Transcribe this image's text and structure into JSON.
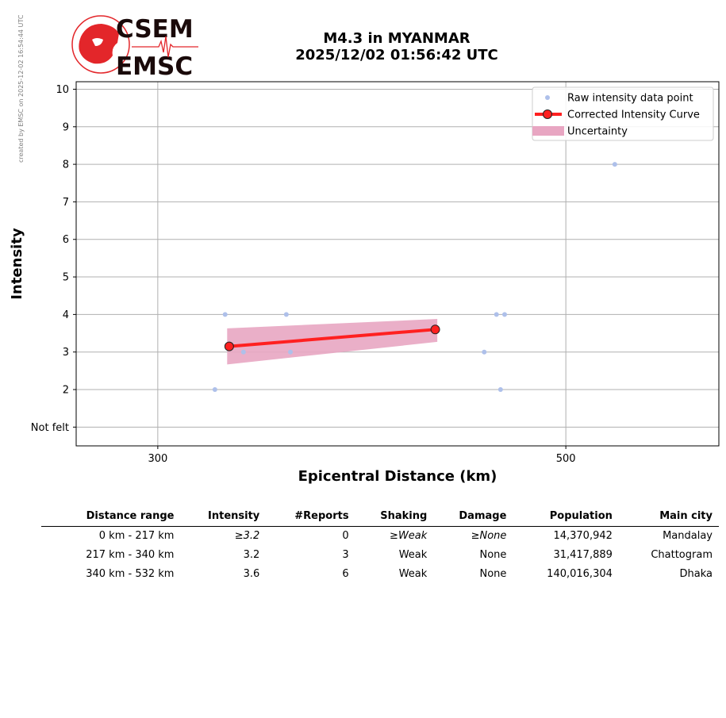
{
  "credit": "created by EMSC on 2025-12-02 16:54:44 UTC",
  "logo": {
    "top_text": "CSEM",
    "bottom_text": "EMSC",
    "accent": "#e3262a"
  },
  "title": {
    "line1": "M4.3 in MYANMAR",
    "line2": "2025/12/02 01:56:42 UTC"
  },
  "chart_data": {
    "type": "scatter",
    "xlabel": "Epicentral Distance (km)",
    "ylabel": "Intensity",
    "xlim": [
      260,
      575
    ],
    "ylim": [
      0.5,
      10.2
    ],
    "x_ticks": [
      300,
      500
    ],
    "y_ticks": [
      {
        "value": 1,
        "label": "Not felt"
      },
      {
        "value": 2,
        "label": "2"
      },
      {
        "value": 3,
        "label": "3"
      },
      {
        "value": 4,
        "label": "4"
      },
      {
        "value": 5,
        "label": "5"
      },
      {
        "value": 6,
        "label": "6"
      },
      {
        "value": 7,
        "label": "7"
      },
      {
        "value": 8,
        "label": "8"
      },
      {
        "value": 9,
        "label": "9"
      },
      {
        "value": 10,
        "label": "10"
      }
    ],
    "grid": true,
    "legend_position": "top-right",
    "series": [
      {
        "name": "Raw intensity data point",
        "kind": "points",
        "color": "#aec0ea",
        "points": [
          {
            "x": 328,
            "y": 2
          },
          {
            "x": 333,
            "y": 4
          },
          {
            "x": 342,
            "y": 3
          },
          {
            "x": 363,
            "y": 4
          },
          {
            "x": 365,
            "y": 3
          },
          {
            "x": 460,
            "y": 3
          },
          {
            "x": 466,
            "y": 4
          },
          {
            "x": 468,
            "y": 2
          },
          {
            "x": 470,
            "y": 4
          },
          {
            "x": 524,
            "y": 8
          }
        ]
      },
      {
        "name": "Corrected Intensity Curve",
        "kind": "line",
        "color": "#ff2020",
        "points": [
          {
            "x": 335,
            "y": 3.15
          },
          {
            "x": 436,
            "y": 3.6
          }
        ]
      },
      {
        "name": "Uncertainty",
        "kind": "band",
        "color": "#e8a6c2",
        "upper": [
          {
            "x": 334,
            "y": 3.63
          },
          {
            "x": 437,
            "y": 3.88
          }
        ],
        "lower": [
          {
            "x": 334,
            "y": 2.67
          },
          {
            "x": 437,
            "y": 3.27
          }
        ]
      }
    ]
  },
  "table": {
    "headers": [
      "Distance range",
      "Intensity",
      "#Reports",
      "Shaking",
      "Damage",
      "Population",
      "Main city"
    ],
    "rows": [
      [
        "0 km -  217 km",
        "≥3.2",
        "0",
        "≥Weak",
        "≥None",
        "14,370,942",
        "Mandalay"
      ],
      [
        "217 km -  340 km",
        "3.2",
        "3",
        "Weak",
        "None",
        "31,417,889",
        "Chattogram"
      ],
      [
        "340 km -  532 km",
        "3.6",
        "6",
        "Weak",
        "None",
        "140,016,304",
        "Dhaka"
      ]
    ]
  }
}
